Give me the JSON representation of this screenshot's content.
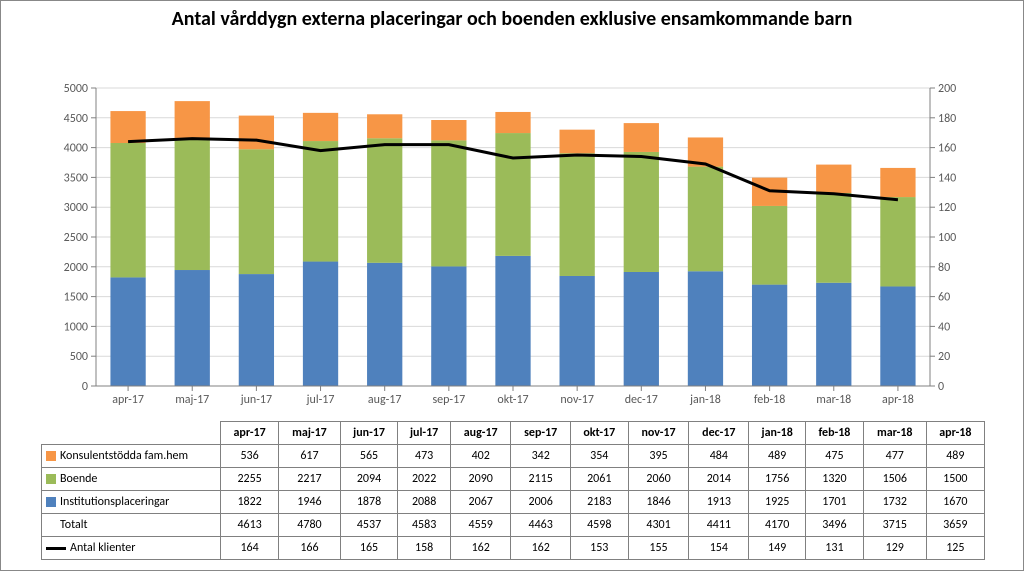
{
  "title": "Antal vårddygn externa placeringar och boenden exklusive ensamkommande barn",
  "chart": {
    "type": "stacked-bar+line",
    "categories": [
      "apr-17",
      "maj-17",
      "jun-17",
      "jul-17",
      "aug-17",
      "sep-17",
      "okt-17",
      "nov-17",
      "dec-17",
      "jan-18",
      "feb-18",
      "mar-18",
      "apr-18"
    ],
    "series": [
      {
        "key": "institution",
        "label": "Institutionsplaceringar",
        "color": "#4f81bd",
        "values": [
          1822,
          1946,
          1878,
          2088,
          2067,
          2006,
          2183,
          1846,
          1913,
          1925,
          1701,
          1732,
          1670
        ]
      },
      {
        "key": "boende",
        "label": "Boende",
        "color": "#9bbb59",
        "values": [
          2255,
          2217,
          2094,
          2022,
          2090,
          2115,
          2061,
          2060,
          2014,
          1756,
          1320,
          1506,
          1500
        ]
      },
      {
        "key": "konsulent",
        "label": "Konsulentstödda fam.hem",
        "color": "#f79646",
        "values": [
          536,
          617,
          565,
          473,
          402,
          342,
          354,
          395,
          484,
          489,
          475,
          477,
          489
        ]
      }
    ],
    "totals_label": "Totalt",
    "totals": [
      4613,
      4780,
      4537,
      4583,
      4559,
      4463,
      4598,
      4301,
      4411,
      4170,
      3496,
      3715,
      3659
    ],
    "line": {
      "key": "klienter",
      "label": "Antal klienter",
      "color": "#000000",
      "values": [
        164,
        166,
        165,
        158,
        162,
        162,
        153,
        155,
        154,
        149,
        131,
        129,
        125
      ]
    },
    "y_left": {
      "min": 0,
      "max": 5000,
      "step": 500
    },
    "y_right": {
      "min": 0,
      "max": 200,
      "step": 20
    },
    "colors": {
      "grid": "#d9d9d9",
      "axis": "#808080",
      "axis_text": "#595959",
      "background": "#ffffff"
    },
    "bar_width_ratio": 0.55,
    "title_fontsize": 20
  }
}
